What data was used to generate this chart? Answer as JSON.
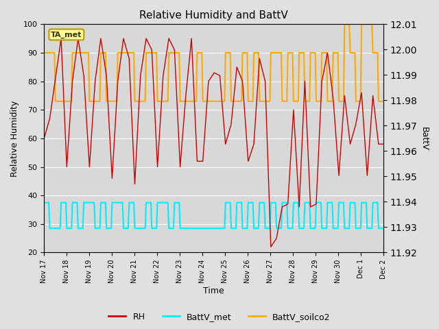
{
  "title": "Relative Humidity and BattV",
  "ylabel_left": "Relative Humidity",
  "ylabel_right": "BattV",
  "xlabel": "Time",
  "ylim_left": [
    20,
    100
  ],
  "ylim_right": [
    11.92,
    12.01
  ],
  "fig_bg_color": "#e0e0e0",
  "plot_bg_color": "#d8d8d8",
  "annotation_text": "TA_met",
  "annotation_bg": "#ffff99",
  "annotation_border": "#bb9900",
  "xtick_labels": [
    "Nov 17",
    "Nov 18",
    "Nov 19",
    "Nov 20",
    "Nov 21",
    "Nov 22",
    "Nov 23",
    "Nov 24",
    "Nov 25",
    "Nov 26",
    "Nov 27",
    "Nov 28",
    "Nov 29",
    "Nov 30",
    "Dec 1",
    "Dec 2"
  ],
  "rh_color": "#cc0000",
  "battv_met_color": "#00eeff",
  "battv_soilco2_color": "#ffaa00",
  "legend_labels": [
    "RH",
    "BattV_met",
    "BattV_soilco2"
  ],
  "grid_color": "#ffffff",
  "n_hours": 360,
  "n_days": 15
}
